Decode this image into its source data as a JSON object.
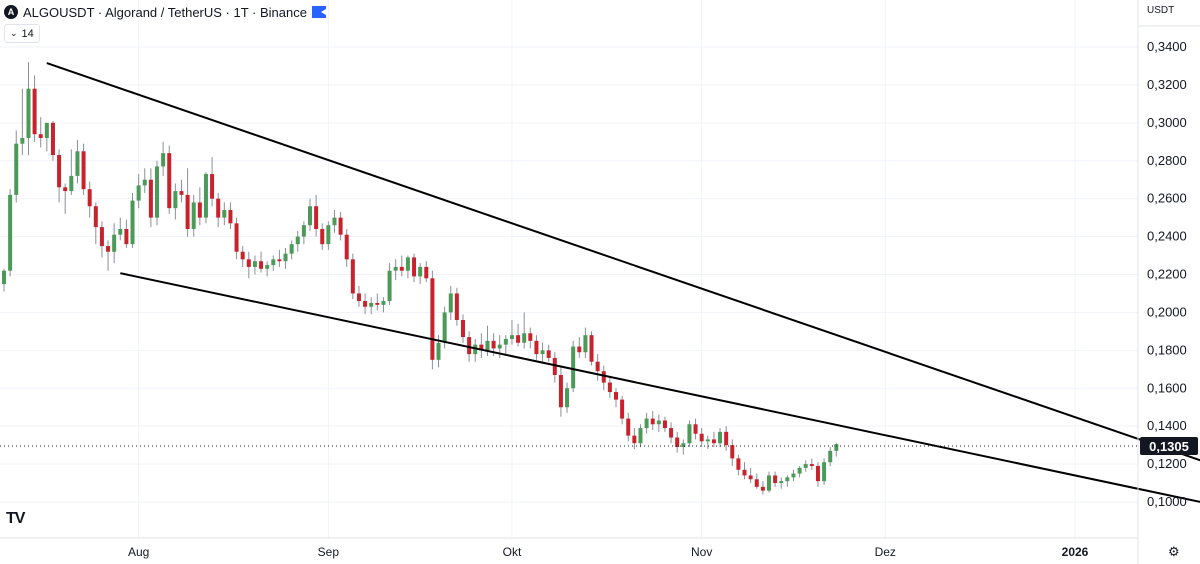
{
  "header": {
    "logo_text": "A",
    "title": "ALGOUSDT · Algorand / TetherUS · 1T · Binance"
  },
  "indicator": {
    "chevron": "⌄",
    "value": "14"
  },
  "price_axis": {
    "unit": "USDT"
  },
  "current_price_label": "0,1305",
  "chart_data": {
    "type": "candlestick",
    "title": "ALGOUSDT · Algorand / TetherUS · 1T · Binance",
    "y_ticks": [
      "0,1000",
      "0,1200",
      "0,1400",
      "0,1600",
      "0,1800",
      "0,2000",
      "0,2200",
      "0,2400",
      "0,2600",
      "0,2800",
      "0,3000",
      "0,3200",
      "0,3400"
    ],
    "y_tick_values": [
      0.1,
      0.12,
      0.14,
      0.16,
      0.18,
      0.2,
      0.22,
      0.24,
      0.26,
      0.28,
      0.3,
      0.32,
      0.34
    ],
    "x_labels": [
      {
        "label": "Aug",
        "date": "2025-08-01"
      },
      {
        "label": "Sep",
        "date": "2025-09-01"
      },
      {
        "label": "Okt",
        "date": "2025-10-01"
      },
      {
        "label": "Nov",
        "date": "2025-11-01"
      },
      {
        "label": "Dez",
        "date": "2025-12-01"
      },
      {
        "label": "2026",
        "date": "2026-01-01"
      }
    ],
    "start_date": "2025-07-10",
    "current_price": 0.1305,
    "colors": {
      "up": "#4c9a58",
      "down": "#c8232c",
      "line": "#000000",
      "grid": "#f0f3fa"
    },
    "candles": [
      [
        0.215,
        0.223,
        0.211,
        0.222
      ],
      [
        0.222,
        0.265,
        0.219,
        0.262
      ],
      [
        0.262,
        0.296,
        0.258,
        0.289
      ],
      [
        0.289,
        0.318,
        0.283,
        0.292
      ],
      [
        0.292,
        0.332,
        0.283,
        0.318
      ],
      [
        0.318,
        0.325,
        0.29,
        0.294
      ],
      [
        0.294,
        0.303,
        0.287,
        0.292
      ],
      [
        0.292,
        0.3,
        0.285,
        0.3
      ],
      [
        0.3,
        0.301,
        0.28,
        0.283
      ],
      [
        0.283,
        0.286,
        0.258,
        0.266
      ],
      [
        0.266,
        0.268,
        0.252,
        0.264
      ],
      [
        0.264,
        0.286,
        0.262,
        0.272
      ],
      [
        0.272,
        0.291,
        0.268,
        0.285
      ],
      [
        0.285,
        0.289,
        0.262,
        0.265
      ],
      [
        0.265,
        0.269,
        0.25,
        0.256
      ],
      [
        0.256,
        0.258,
        0.236,
        0.245
      ],
      [
        0.245,
        0.248,
        0.229,
        0.235
      ],
      [
        0.235,
        0.238,
        0.222,
        0.232
      ],
      [
        0.232,
        0.247,
        0.226,
        0.241
      ],
      [
        0.241,
        0.25,
        0.238,
        0.244
      ],
      [
        0.244,
        0.249,
        0.234,
        0.236
      ],
      [
        0.236,
        0.263,
        0.234,
        0.259
      ],
      [
        0.259,
        0.273,
        0.255,
        0.267
      ],
      [
        0.267,
        0.276,
        0.263,
        0.27
      ],
      [
        0.27,
        0.276,
        0.245,
        0.25
      ],
      [
        0.25,
        0.28,
        0.246,
        0.277
      ],
      [
        0.277,
        0.29,
        0.272,
        0.284
      ],
      [
        0.284,
        0.288,
        0.252,
        0.255
      ],
      [
        0.255,
        0.268,
        0.249,
        0.264
      ],
      [
        0.264,
        0.27,
        0.258,
        0.262
      ],
      [
        0.262,
        0.276,
        0.24,
        0.244
      ],
      [
        0.244,
        0.262,
        0.24,
        0.258
      ],
      [
        0.258,
        0.266,
        0.246,
        0.25
      ],
      [
        0.25,
        0.274,
        0.247,
        0.273
      ],
      [
        0.273,
        0.282,
        0.256,
        0.26
      ],
      [
        0.26,
        0.263,
        0.245,
        0.25
      ],
      [
        0.25,
        0.258,
        0.246,
        0.254
      ],
      [
        0.254,
        0.258,
        0.244,
        0.247
      ],
      [
        0.247,
        0.25,
        0.228,
        0.232
      ],
      [
        0.232,
        0.235,
        0.224,
        0.228
      ],
      [
        0.228,
        0.232,
        0.218,
        0.224
      ],
      [
        0.224,
        0.23,
        0.22,
        0.227
      ],
      [
        0.227,
        0.232,
        0.221,
        0.223
      ],
      [
        0.223,
        0.227,
        0.219,
        0.225
      ],
      [
        0.225,
        0.23,
        0.222,
        0.228
      ],
      [
        0.228,
        0.233,
        0.224,
        0.227
      ],
      [
        0.227,
        0.234,
        0.223,
        0.231
      ],
      [
        0.231,
        0.238,
        0.228,
        0.236
      ],
      [
        0.236,
        0.243,
        0.232,
        0.24
      ],
      [
        0.24,
        0.248,
        0.236,
        0.246
      ],
      [
        0.246,
        0.26,
        0.243,
        0.256
      ],
      [
        0.256,
        0.262,
        0.24,
        0.244
      ],
      [
        0.244,
        0.247,
        0.233,
        0.236
      ],
      [
        0.236,
        0.248,
        0.233,
        0.246
      ],
      [
        0.246,
        0.254,
        0.242,
        0.25
      ],
      [
        0.25,
        0.253,
        0.238,
        0.241
      ],
      [
        0.241,
        0.244,
        0.224,
        0.228
      ],
      [
        0.228,
        0.231,
        0.207,
        0.21
      ],
      [
        0.21,
        0.214,
        0.203,
        0.206
      ],
      [
        0.206,
        0.21,
        0.199,
        0.203
      ],
      [
        0.203,
        0.208,
        0.199,
        0.205
      ],
      [
        0.205,
        0.21,
        0.201,
        0.204
      ],
      [
        0.204,
        0.208,
        0.2,
        0.206
      ],
      [
        0.206,
        0.226,
        0.204,
        0.222
      ],
      [
        0.222,
        0.228,
        0.217,
        0.224
      ],
      [
        0.224,
        0.23,
        0.219,
        0.222
      ],
      [
        0.222,
        0.23,
        0.218,
        0.229
      ],
      [
        0.229,
        0.231,
        0.216,
        0.219
      ],
      [
        0.219,
        0.226,
        0.215,
        0.224
      ],
      [
        0.224,
        0.227,
        0.216,
        0.218
      ],
      [
        0.218,
        0.222,
        0.17,
        0.175
      ],
      [
        0.175,
        0.188,
        0.171,
        0.184
      ],
      [
        0.184,
        0.203,
        0.181,
        0.2
      ],
      [
        0.2,
        0.214,
        0.196,
        0.21
      ],
      [
        0.21,
        0.213,
        0.193,
        0.196
      ],
      [
        0.196,
        0.199,
        0.184,
        0.187
      ],
      [
        0.187,
        0.19,
        0.174,
        0.178
      ],
      [
        0.178,
        0.186,
        0.174,
        0.183
      ],
      [
        0.183,
        0.189,
        0.176,
        0.18
      ],
      [
        0.18,
        0.193,
        0.177,
        0.185
      ],
      [
        0.185,
        0.189,
        0.177,
        0.181
      ],
      [
        0.181,
        0.188,
        0.176,
        0.183
      ],
      [
        0.183,
        0.188,
        0.177,
        0.186
      ],
      [
        0.186,
        0.196,
        0.183,
        0.188
      ],
      [
        0.188,
        0.194,
        0.182,
        0.184
      ],
      [
        0.184,
        0.2,
        0.181,
        0.189
      ],
      [
        0.189,
        0.192,
        0.181,
        0.185
      ],
      [
        0.185,
        0.188,
        0.175,
        0.178
      ],
      [
        0.178,
        0.184,
        0.173,
        0.18
      ],
      [
        0.18,
        0.183,
        0.174,
        0.176
      ],
      [
        0.176,
        0.179,
        0.163,
        0.167
      ],
      [
        0.167,
        0.172,
        0.145,
        0.15
      ],
      [
        0.15,
        0.163,
        0.147,
        0.16
      ],
      [
        0.16,
        0.185,
        0.158,
        0.182
      ],
      [
        0.182,
        0.187,
        0.176,
        0.179
      ],
      [
        0.179,
        0.192,
        0.176,
        0.188
      ],
      [
        0.188,
        0.19,
        0.172,
        0.174
      ],
      [
        0.174,
        0.178,
        0.164,
        0.169
      ],
      [
        0.169,
        0.172,
        0.159,
        0.163
      ],
      [
        0.163,
        0.166,
        0.155,
        0.158
      ],
      [
        0.158,
        0.16,
        0.15,
        0.154
      ],
      [
        0.154,
        0.156,
        0.141,
        0.144
      ],
      [
        0.144,
        0.147,
        0.132,
        0.135
      ],
      [
        0.135,
        0.139,
        0.128,
        0.131
      ],
      [
        0.131,
        0.141,
        0.129,
        0.139
      ],
      [
        0.139,
        0.147,
        0.136,
        0.144
      ],
      [
        0.144,
        0.148,
        0.138,
        0.141
      ],
      [
        0.141,
        0.146,
        0.137,
        0.143
      ],
      [
        0.143,
        0.145,
        0.137,
        0.139
      ],
      [
        0.139,
        0.142,
        0.131,
        0.134
      ],
      [
        0.134,
        0.137,
        0.126,
        0.129
      ],
      [
        0.129,
        0.133,
        0.125,
        0.131
      ],
      [
        0.131,
        0.143,
        0.129,
        0.141
      ],
      [
        0.141,
        0.144,
        0.133,
        0.136
      ],
      [
        0.136,
        0.139,
        0.129,
        0.132
      ],
      [
        0.132,
        0.135,
        0.128,
        0.133
      ],
      [
        0.133,
        0.137,
        0.129,
        0.131
      ],
      [
        0.131,
        0.139,
        0.129,
        0.137
      ],
      [
        0.137,
        0.14,
        0.127,
        0.13
      ],
      [
        0.13,
        0.133,
        0.119,
        0.123
      ],
      [
        0.123,
        0.125,
        0.114,
        0.117
      ],
      [
        0.117,
        0.121,
        0.112,
        0.114
      ],
      [
        0.114,
        0.118,
        0.11,
        0.112
      ],
      [
        0.112,
        0.115,
        0.107,
        0.108
      ],
      [
        0.108,
        0.111,
        0.104,
        0.106
      ],
      [
        0.106,
        0.116,
        0.105,
        0.114
      ],
      [
        0.114,
        0.116,
        0.108,
        0.11
      ],
      [
        0.11,
        0.113,
        0.107,
        0.111
      ],
      [
        0.111,
        0.114,
        0.108,
        0.113
      ],
      [
        0.113,
        0.117,
        0.111,
        0.115
      ],
      [
        0.115,
        0.119,
        0.113,
        0.118
      ],
      [
        0.118,
        0.122,
        0.116,
        0.12
      ],
      [
        0.12,
        0.123,
        0.117,
        0.119
      ],
      [
        0.119,
        0.121,
        0.108,
        0.111
      ],
      [
        0.111,
        0.123,
        0.109,
        0.121
      ],
      [
        0.121,
        0.129,
        0.119,
        0.127
      ],
      [
        0.127,
        0.131,
        0.124,
        0.1305
      ]
    ],
    "trendlines": [
      {
        "name": "upper",
        "from": {
          "date": "2025-07-17",
          "price": 0.3315
        },
        "to": {
          "date": "2026-01-30",
          "price": 0.1125
        }
      },
      {
        "name": "lower",
        "from": {
          "date": "2025-07-29",
          "price": 0.2207
        },
        "to": {
          "date": "2026-01-31",
          "price": 0.0935
        }
      }
    ],
    "grid": true
  }
}
